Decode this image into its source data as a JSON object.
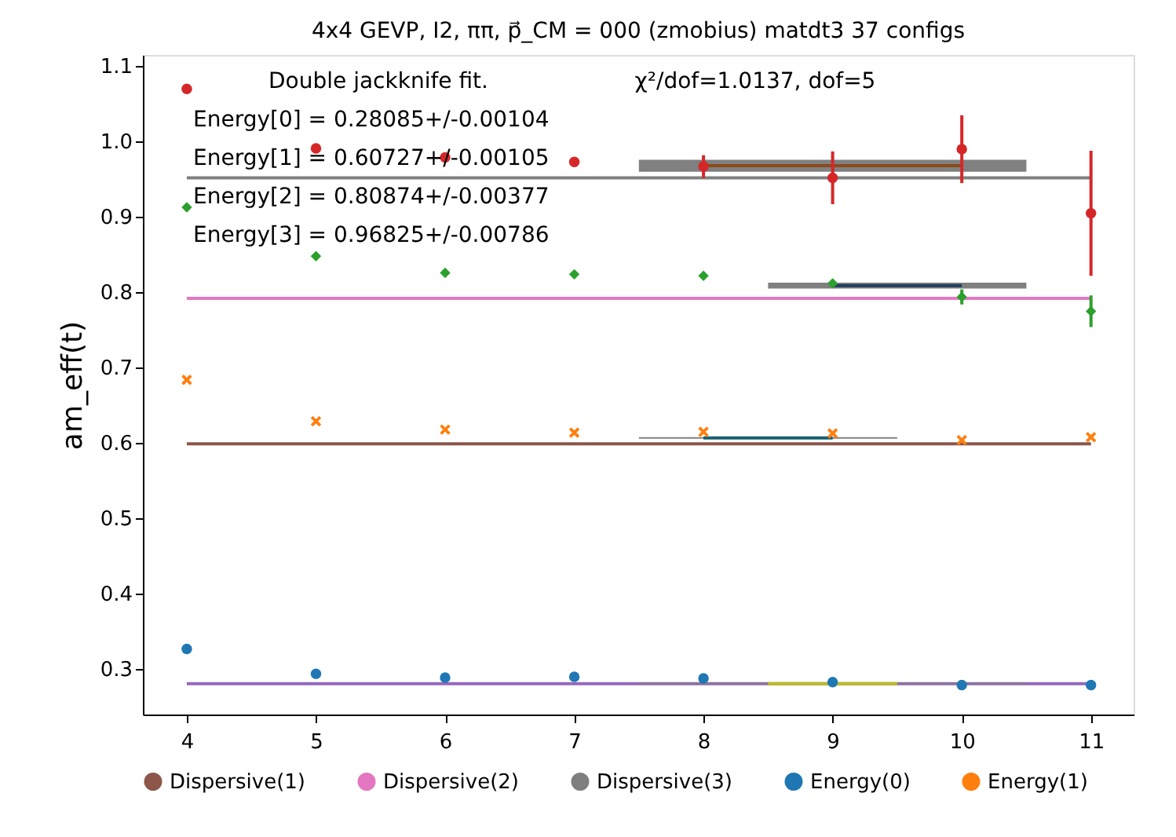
{
  "chart_data": {
    "type": "scatter",
    "title": "4x4 GEVP, I2, ππ, p⃗_CM = 000 (zmobius) matdt3 37 configs",
    "ylabel": "am_eff(t)",
    "xlim": [
      3.66,
      11.33
    ],
    "xticks": [
      4,
      5,
      6,
      7,
      8,
      9,
      10,
      11
    ],
    "ylim": [
      0.24,
      1.115
    ],
    "yticks": [
      0.3,
      0.4,
      0.5,
      0.6,
      0.7,
      0.8,
      0.9,
      {
        "value": 1.0,
        "label": "1.0"
      },
      1.1
    ],
    "grid": false,
    "legend": "bottom",
    "annotations": [
      "Double jackknife fit.",
      "Energy[0] = 0.28085+/-0.00104",
      "Energy[1] = 0.60727+/-0.00105",
      "Energy[2] = 0.80874+/-0.00377",
      "Energy[3] = 0.96825+/-0.00786",
      "χ²/dof=1.0137, dof=5"
    ],
    "series": [
      {
        "type": "line",
        "color": "#9467bd",
        "x": [
          4,
          11
        ],
        "values": [
          0.281,
          0.281
        ]
      },
      {
        "type": "line",
        "name": "Dispersive(1)",
        "color": "#8c564b",
        "x": [
          4,
          11
        ],
        "values": [
          0.599,
          0.599
        ]
      },
      {
        "type": "line",
        "name": "Dispersive(2)",
        "color": "#e377c2",
        "x": [
          4,
          11
        ],
        "values": [
          0.792,
          0.792
        ]
      },
      {
        "type": "line",
        "name": "Dispersive(3)",
        "color": "#7f7f7f",
        "x": [
          4,
          11
        ],
        "values": [
          0.952,
          0.952
        ]
      },
      {
        "type": "line",
        "color": "#bcbd22",
        "x": [
          7.5,
          8.5,
          9.5,
          10.5
        ],
        "values": [
          null,
          0.281,
          0.281,
          null
        ],
        "lower": [
          0.28,
          0.28,
          0.28,
          0.28
        ],
        "upper": [
          0.282,
          0.282,
          0.282,
          0.282
        ]
      },
      {
        "type": "line",
        "color": "#17606e",
        "x": [
          7.5,
          8,
          9,
          9.5
        ],
        "values": [
          null,
          0.607,
          0.607,
          null
        ],
        "lower": [
          0.606,
          0.606,
          0.606,
          0.606
        ],
        "upper": [
          0.608,
          0.608,
          0.608,
          0.608
        ]
      },
      {
        "type": "line",
        "color": "#1f3f5f",
        "x": [
          8.5,
          9,
          10,
          10.5
        ],
        "values": [
          null,
          0.809,
          0.809,
          null
        ],
        "lower": [
          0.805,
          0.805,
          0.805,
          0.805
        ],
        "upper": [
          0.813,
          0.813,
          0.813,
          0.813
        ]
      },
      {
        "type": "line",
        "color": "#8c4a1a",
        "x": [
          7.5,
          8,
          10,
          10.5
        ],
        "values": [
          null,
          0.968,
          0.968,
          null
        ],
        "lower": [
          0.96,
          0.96,
          0.96,
          0.96
        ],
        "upper": [
          0.976,
          0.976,
          0.976,
          0.976
        ]
      },
      {
        "name": "Energy(0)",
        "color": "#1f77b4",
        "marker": "circle",
        "x": [
          4,
          5,
          6,
          7,
          8,
          9,
          10,
          11
        ],
        "values": [
          0.327,
          0.294,
          0.289,
          0.29,
          0.288,
          0.283,
          0.279,
          0.279
        ]
      },
      {
        "name": "Energy(1)",
        "color": "#ff7f0e",
        "marker": "cross",
        "x": [
          4,
          5,
          6,
          7,
          8,
          9,
          10,
          11
        ],
        "values": [
          0.684,
          0.629,
          0.618,
          0.614,
          0.615,
          0.613,
          0.604,
          0.608
        ]
      },
      {
        "color": "#2ca02c",
        "marker": "diamond",
        "x": [
          4,
          5,
          6,
          7,
          8,
          9,
          10,
          11
        ],
        "values": [
          0.913,
          0.848,
          0.826,
          0.824,
          0.822,
          0.812,
          0.794,
          0.775
        ],
        "errors": [
          null,
          null,
          null,
          null,
          null,
          null,
          0.01,
          0.021
        ]
      },
      {
        "color": "#d62728",
        "marker": "circle",
        "x": [
          4,
          5,
          6,
          7,
          8,
          9,
          10,
          11
        ],
        "values": [
          1.07,
          0.991,
          0.979,
          0.973,
          0.967,
          0.952,
          0.99,
          0.905
        ],
        "errors": [
          null,
          null,
          null,
          null,
          0.015,
          0.035,
          0.045,
          0.083
        ]
      }
    ]
  }
}
